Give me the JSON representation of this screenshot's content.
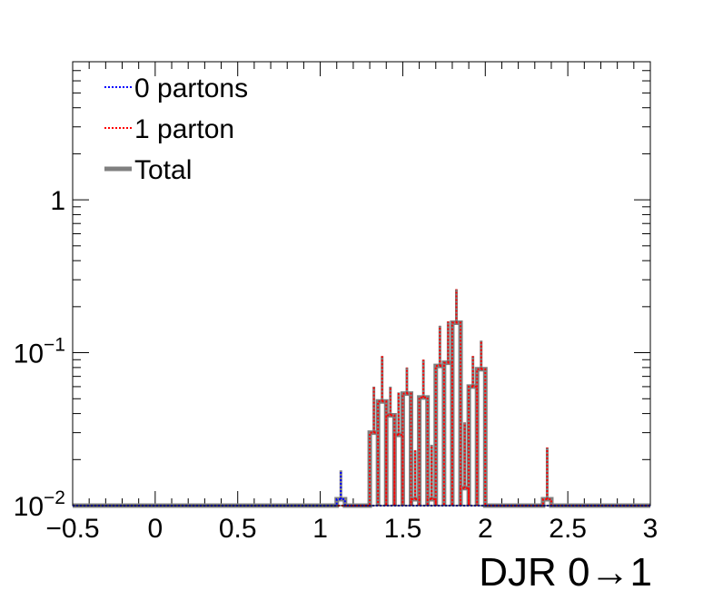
{
  "chart_data": {
    "type": "line",
    "step": true,
    "xlabel": "DJR 0→1",
    "x_scale": "linear",
    "y_scale": "log",
    "xlim": [
      -0.5,
      3
    ],
    "ylim": [
      0.01,
      8
    ],
    "x_ticks": [
      -0.5,
      0,
      0.5,
      1,
      1.5,
      2,
      2.5,
      3
    ],
    "x_tick_labels": [
      "−0.5",
      "0",
      "0.5",
      "1",
      "1.5",
      "2",
      "2.5",
      "3"
    ],
    "y_ticks": [
      0.01,
      0.1,
      1
    ],
    "y_tick_labels": [
      {
        "base": "10",
        "exp": "−2"
      },
      {
        "base": "10",
        "exp": "−1"
      },
      {
        "base": "1",
        "exp": ""
      }
    ],
    "grid": false,
    "legend_position": "top-left",
    "legend": [
      "0 partons",
      "1 parton",
      "Total"
    ],
    "bin_width": 0.05,
    "series": [
      {
        "name": "Total",
        "color": "#808080",
        "style": "solid-thick",
        "points": [
          [
            1.1,
            0.011
          ],
          [
            1.3,
            0.03
          ],
          [
            1.35,
            0.048
          ],
          [
            1.4,
            0.039
          ],
          [
            1.45,
            0.029
          ],
          [
            1.5,
            0.054
          ],
          [
            1.55,
            0.011
          ],
          [
            1.6,
            0.051
          ],
          [
            1.65,
            0.011
          ],
          [
            1.7,
            0.082
          ],
          [
            1.75,
            0.086
          ],
          [
            1.8,
            0.157
          ],
          [
            1.85,
            0.013
          ],
          [
            1.9,
            0.06
          ],
          [
            1.95,
            0.078
          ],
          [
            2.35,
            0.011
          ]
        ],
        "errors": [
          0.017,
          0.06,
          0.095,
          0.06,
          0.055,
          0.08,
          0.023,
          0.09,
          0.025,
          0.15,
          0.16,
          0.26,
          0.035,
          0.095,
          0.12,
          0.024
        ]
      },
      {
        "name": "1 parton",
        "color": "#ff0000",
        "style": "dotted",
        "points": [
          [
            1.3,
            0.03
          ],
          [
            1.35,
            0.048
          ],
          [
            1.4,
            0.039
          ],
          [
            1.45,
            0.029
          ],
          [
            1.5,
            0.054
          ],
          [
            1.55,
            0.011
          ],
          [
            1.6,
            0.051
          ],
          [
            1.65,
            0.011
          ],
          [
            1.7,
            0.082
          ],
          [
            1.75,
            0.086
          ],
          [
            1.8,
            0.157
          ],
          [
            1.85,
            0.013
          ],
          [
            1.9,
            0.06
          ],
          [
            1.95,
            0.078
          ],
          [
            2.35,
            0.011
          ]
        ]
      },
      {
        "name": "0 partons",
        "color": "#0000ff",
        "style": "dotted",
        "points": [
          [
            1.1,
            0.011
          ]
        ]
      }
    ]
  }
}
